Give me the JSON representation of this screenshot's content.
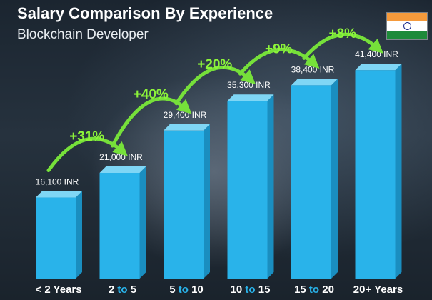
{
  "header": {
    "title": "Salary Comparison By Experience",
    "subtitle": "Blockchain Developer"
  },
  "flag": {
    "icon": "india-flag-icon",
    "colors": [
      "#f59a3b",
      "#ffffff",
      "#1e8a3a",
      "#1b2c8c"
    ]
  },
  "colors": {
    "bar_front": "#29b3ea",
    "bar_side": "#1a8ec0",
    "bar_top": "#7fd6f5",
    "arrow": "#76e03a",
    "percent": "#8cf43a",
    "category_white": "#ffffff",
    "category_accent": "#29b3ea"
  },
  "chart_data": {
    "type": "bar",
    "title": "Salary Comparison By Experience",
    "subtitle": "Blockchain Developer",
    "categories": [
      {
        "label_parts": [
          {
            "text": "< 2 Years",
            "color": "white"
          }
        ]
      },
      {
        "label_parts": [
          {
            "text": "2",
            "color": "white"
          },
          {
            "text": " to ",
            "color": "accent"
          },
          {
            "text": "5",
            "color": "white"
          }
        ]
      },
      {
        "label_parts": [
          {
            "text": "5",
            "color": "white"
          },
          {
            "text": " to ",
            "color": "accent"
          },
          {
            "text": "10",
            "color": "white"
          }
        ]
      },
      {
        "label_parts": [
          {
            "text": "10",
            "color": "white"
          },
          {
            "text": " to ",
            "color": "accent"
          },
          {
            "text": "15",
            "color": "white"
          }
        ]
      },
      {
        "label_parts": [
          {
            "text": "15",
            "color": "white"
          },
          {
            "text": " to ",
            "color": "accent"
          },
          {
            "text": "20",
            "color": "white"
          }
        ]
      },
      {
        "label_parts": [
          {
            "text": "20+ Years",
            "color": "white"
          }
        ]
      }
    ],
    "values": [
      16100,
      21000,
      29400,
      35300,
      38400,
      41400
    ],
    "value_labels": [
      "16,100 INR",
      "21,000 INR",
      "29,400 INR",
      "35,300 INR",
      "38,400 INR",
      "41,400 INR"
    ],
    "increases": [
      "+31%",
      "+40%",
      "+20%",
      "+9%",
      "+8%"
    ],
    "unit": "INR",
    "ylim": [
      0,
      42000
    ],
    "grid": false,
    "legend": "none"
  }
}
